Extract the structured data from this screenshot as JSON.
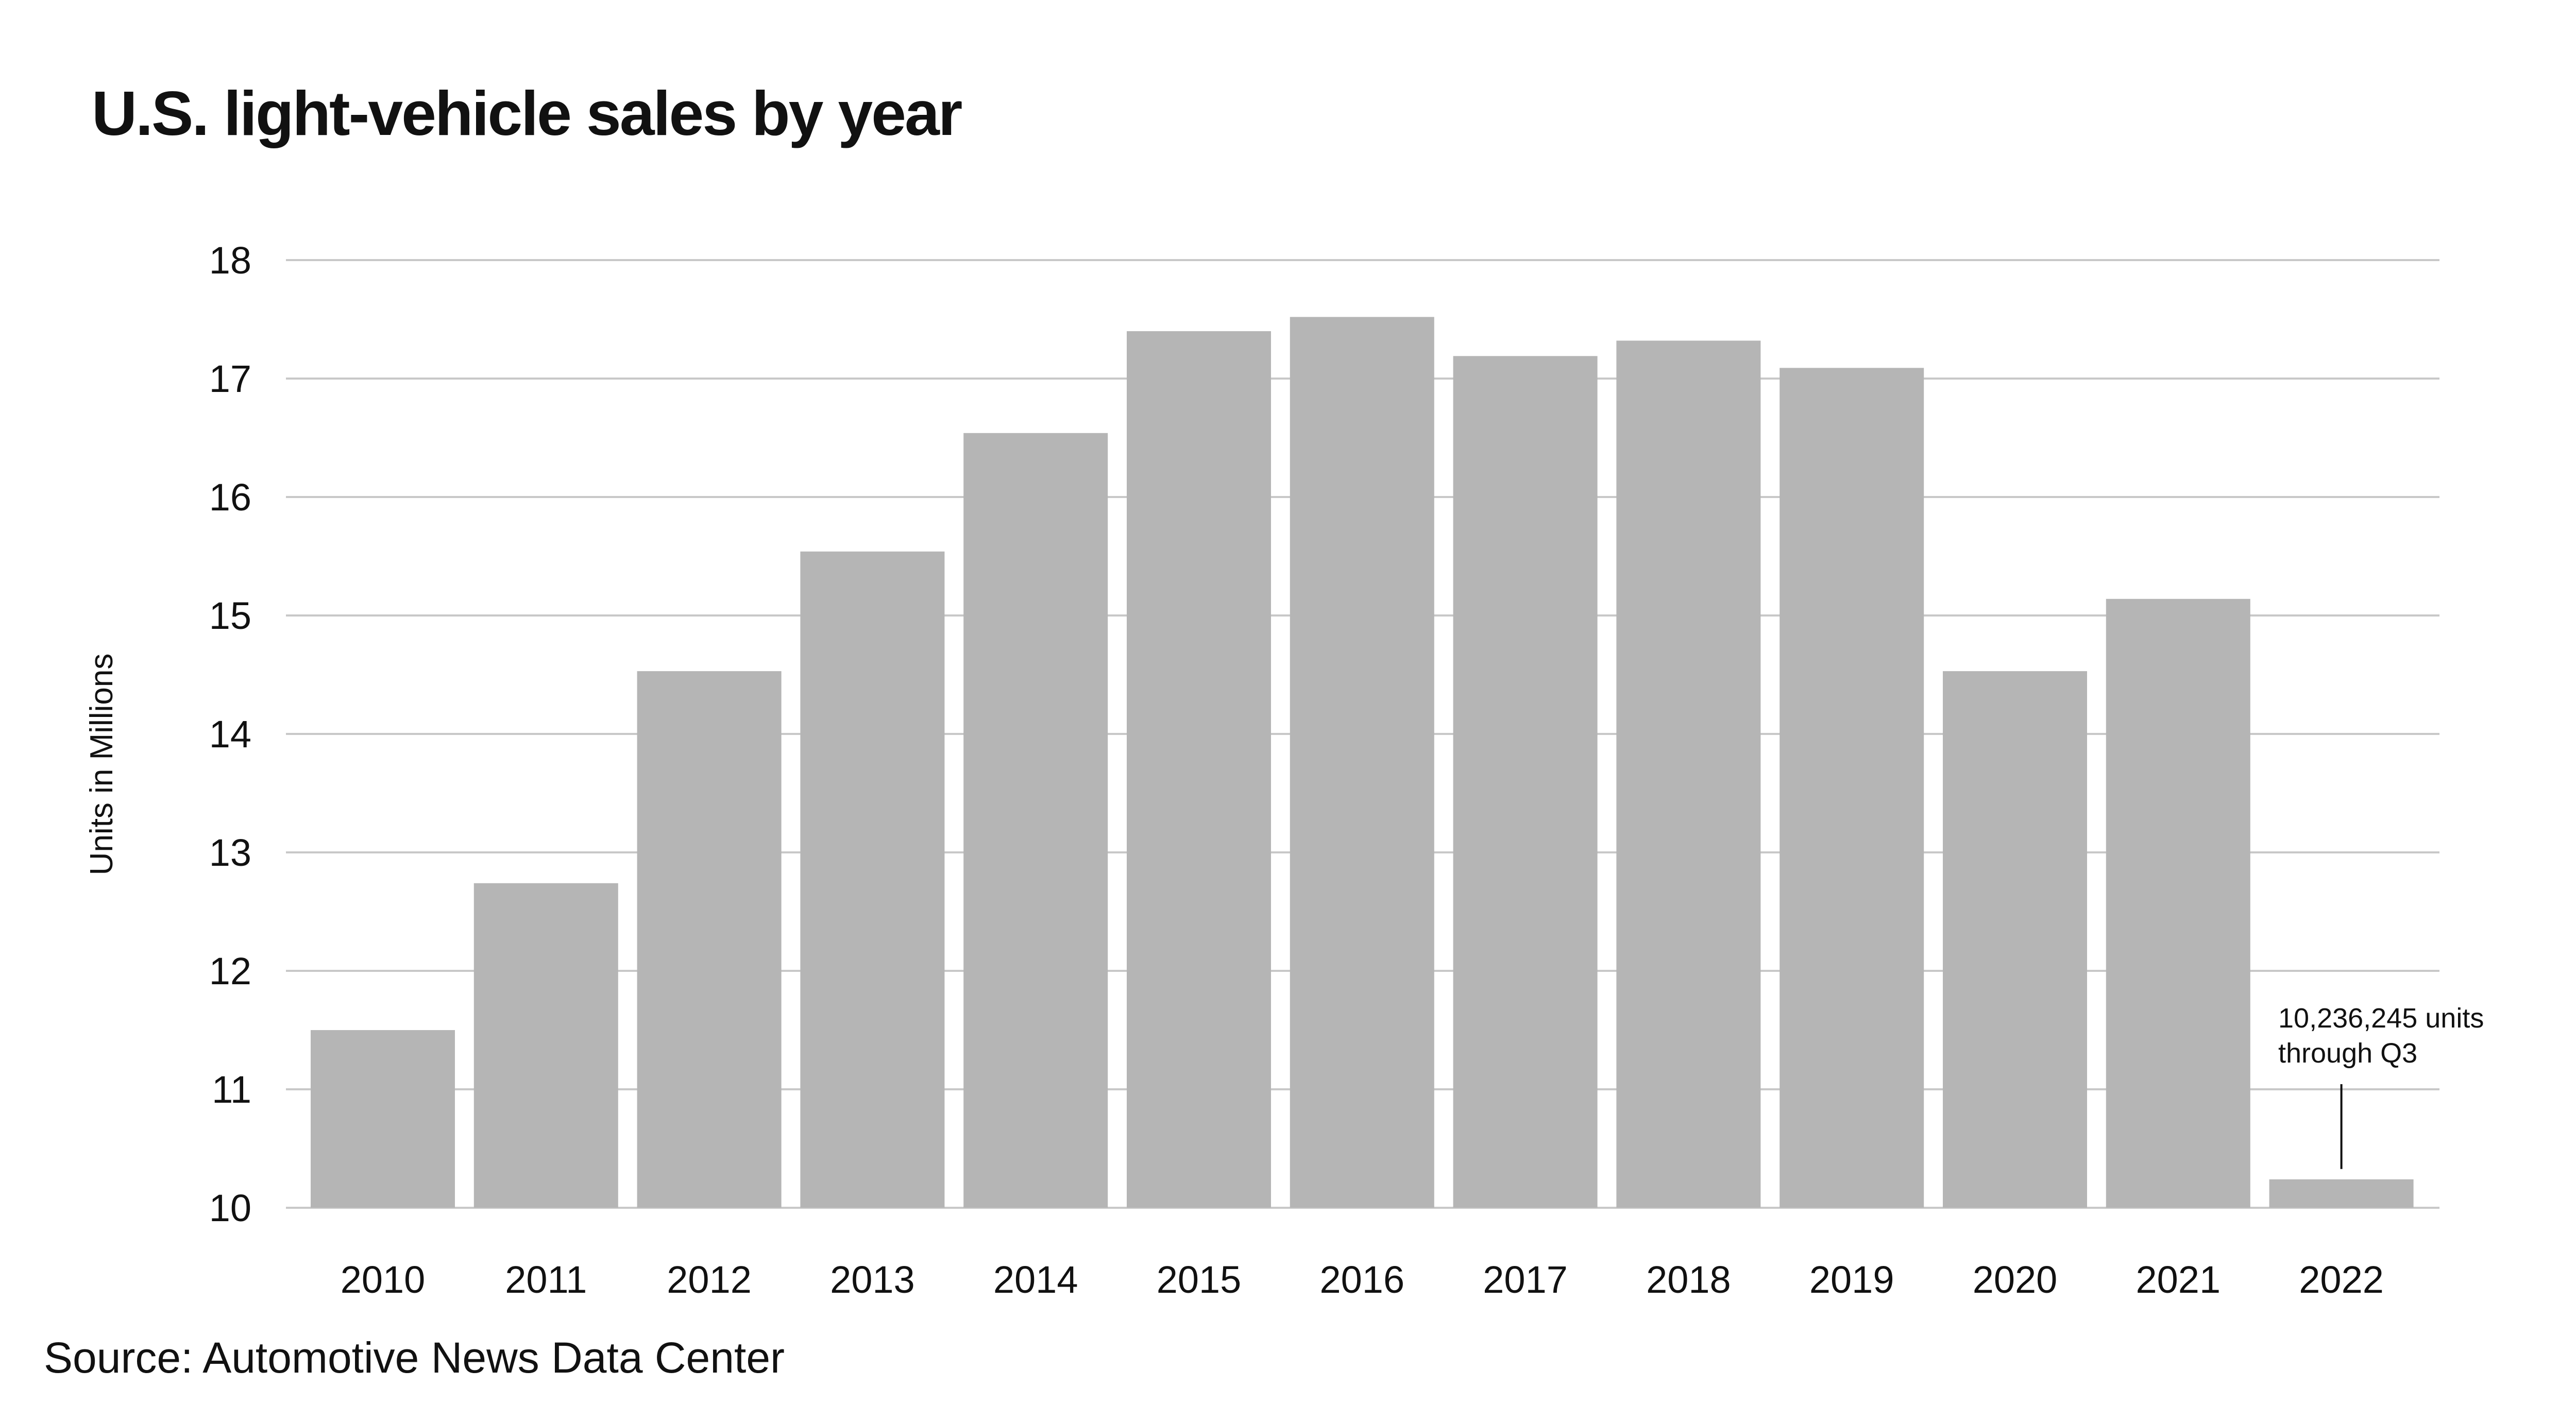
{
  "chart_data": {
    "type": "bar",
    "title": "U.S. light-vehicle sales by year",
    "xlabel": "",
    "ylabel": "Units in Millions",
    "categories": [
      "2010",
      "2011",
      "2012",
      "2013",
      "2014",
      "2015",
      "2016",
      "2017",
      "2018",
      "2019",
      "2020",
      "2021",
      "2022"
    ],
    "values": [
      11.5,
      12.74,
      14.53,
      15.54,
      16.54,
      17.4,
      17.52,
      17.19,
      17.32,
      17.09,
      14.53,
      15.14,
      10.24
    ],
    "ylim": [
      10,
      18
    ],
    "yticks": [
      "10",
      "11",
      "12",
      "13",
      "14",
      "15",
      "16",
      "17",
      "18"
    ],
    "grid": true,
    "bar_color": "#b5b5b5",
    "gridline_color": "#c8c8c8",
    "annotation": {
      "category": "2022",
      "lines": [
        "10,236,245 units",
        "through Q3"
      ]
    },
    "source": "Source: Automotive News Data Center"
  }
}
